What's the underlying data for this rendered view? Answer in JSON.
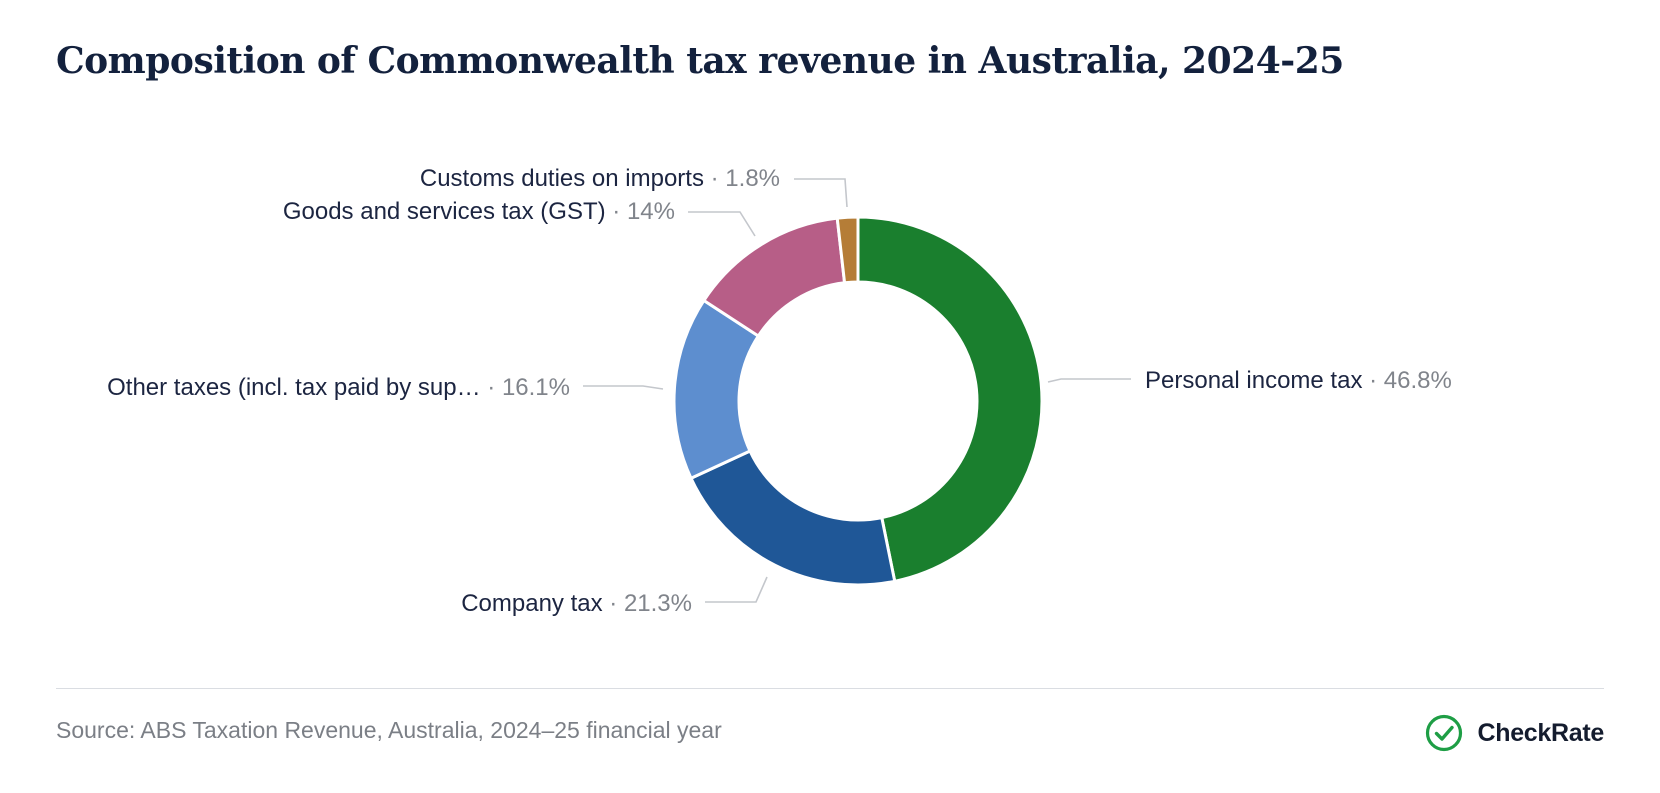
{
  "title": "Composition of Commonwealth tax revenue in Australia, 2024-25",
  "source": "Source: ABS Taxation Revenue, Australia, 2024–25 financial year",
  "brand": {
    "name": "CheckRate",
    "icon": "check-circle-icon",
    "color": "#1e9e45"
  },
  "chart_data": {
    "type": "pie",
    "subtype": "donut",
    "title": "Composition of Commonwealth tax revenue in Australia, 2024-25",
    "unit": "%",
    "slices": [
      {
        "label": "Personal income tax",
        "display_value": "46.8%",
        "value": 46.8,
        "color": "#1a7f2e"
      },
      {
        "label": "Company tax",
        "display_value": "21.3%",
        "value": 21.3,
        "color": "#1f5797"
      },
      {
        "label": "Other taxes (incl. tax paid by sup…",
        "display_value": "16.1%",
        "value": 16.1,
        "color": "#5d8ecf"
      },
      {
        "label": "Goods and services tax (GST)",
        "display_value": "14%",
        "value": 14.0,
        "color": "#b75e87"
      },
      {
        "label": "Customs duties on imports",
        "display_value": "1.8%",
        "value": 1.8,
        "color": "#b57d37"
      }
    ],
    "legend": "none",
    "label_separator": " · "
  }
}
